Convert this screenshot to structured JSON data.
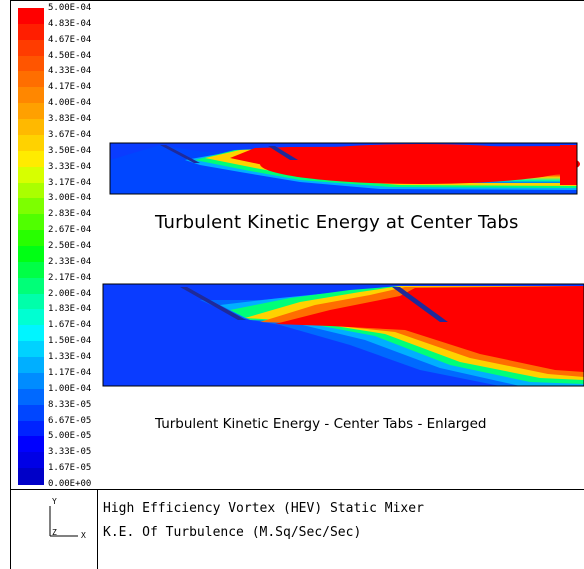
{
  "legend": {
    "labels": [
      "5.00E-04",
      "4.83E-04",
      "4.67E-04",
      "4.50E-04",
      "4.33E-04",
      "4.17E-04",
      "4.00E-04",
      "3.83E-04",
      "3.67E-04",
      "3.50E-04",
      "3.33E-04",
      "3.17E-04",
      "3.00E-04",
      "2.83E-04",
      "2.67E-04",
      "2.50E-04",
      "2.33E-04",
      "2.17E-04",
      "2.00E-04",
      "1.83E-04",
      "1.67E-04",
      "1.50E-04",
      "1.33E-04",
      "1.17E-04",
      "1.00E-04",
      "8.33E-05",
      "6.67E-05",
      "5.00E-05",
      "3.33E-05",
      "1.67E-05",
      "0.00E+00"
    ],
    "colors": [
      "#ff0000",
      "#ff1e00",
      "#ff3c00",
      "#ff5500",
      "#ff6e00",
      "#ff8700",
      "#ffa000",
      "#ffb900",
      "#ffd200",
      "#ffeb00",
      "#d7ff00",
      "#aaff00",
      "#7dff00",
      "#50ff00",
      "#28ff00",
      "#00ff14",
      "#00ff46",
      "#00ff78",
      "#00ffaa",
      "#00ffd2",
      "#00f5ff",
      "#00d2ff",
      "#00afff",
      "#008cff",
      "#0069ff",
      "#0046ff",
      "#0023ff",
      "#0000ff",
      "#0000e6",
      "#0000c8"
    ]
  },
  "captions": {
    "top": "Turbulent Kinetic Energy at Center Tabs",
    "bottom": "Turbulent Kinetic Energy - Center Tabs - Enlarged"
  },
  "info": {
    "line1": "High Efficiency Vortex (HEV) Static Mixer",
    "line2": "K.E. Of Turbulence (M.Sq/Sec/Sec)"
  },
  "axes": {
    "y": "Y",
    "z": "Z",
    "x": "X"
  }
}
